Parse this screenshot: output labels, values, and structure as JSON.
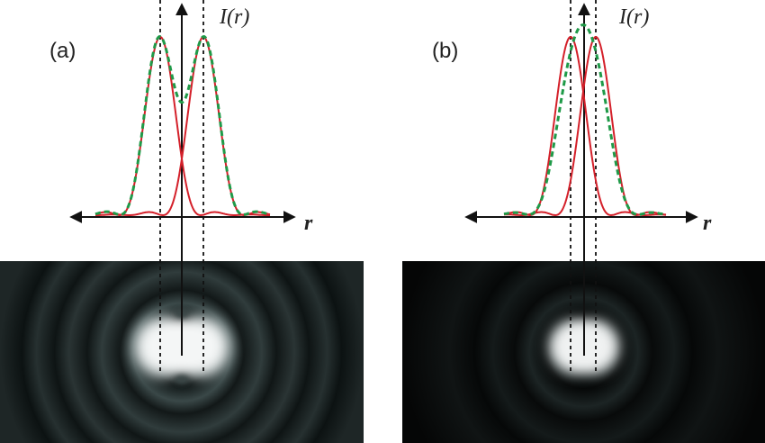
{
  "panels": [
    {
      "label": "(a)",
      "y_axis_label": "I(r)",
      "x_axis_label": "r",
      "separation": "resolved"
    },
    {
      "label": "(b)",
      "y_axis_label": "I(r)",
      "x_axis_label": "r",
      "separation": "barely-resolved"
    }
  ],
  "colors": {
    "single_psf": "#d4202a",
    "sum_curve": "#1f9a48",
    "axis": "#111111",
    "guide": "#111111",
    "image_background": "#000000"
  }
}
